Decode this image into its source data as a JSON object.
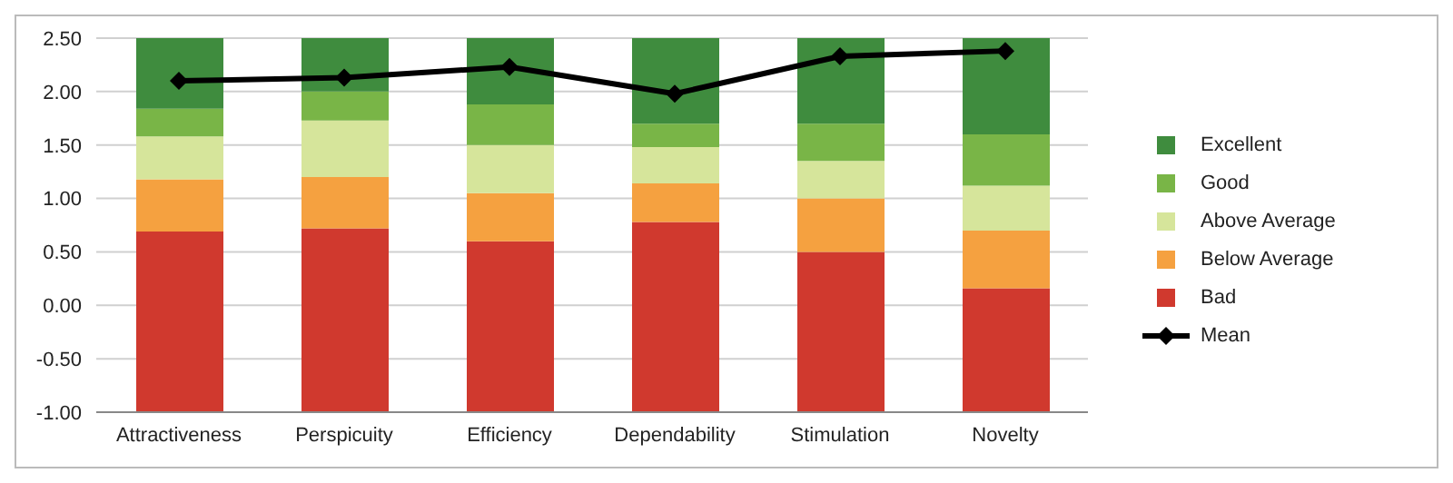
{
  "chart_data": {
    "type": "bar",
    "categories": [
      "Attractiveness",
      "Perspicuity",
      "Efficiency",
      "Dependability",
      "Stimulation",
      "Novelty"
    ],
    "series": [
      {
        "name": "Bad",
        "color": "#d0392e",
        "base": [
          -1,
          -1,
          -1,
          -1,
          -1,
          -1
        ],
        "values": [
          1.69,
          1.72,
          1.6,
          1.78,
          1.5,
          1.16
        ]
      },
      {
        "name": "Below Average",
        "color": "#f5a140",
        "base": [
          0.69,
          0.72,
          0.6,
          0.78,
          0.5,
          0.16
        ],
        "values": [
          0.49,
          0.48,
          0.45,
          0.36,
          0.5,
          0.54
        ]
      },
      {
        "name": "Above Average",
        "color": "#d6e59b",
        "base": [
          1.18,
          1.2,
          1.05,
          1.14,
          1.0,
          0.7
        ],
        "values": [
          0.4,
          0.53,
          0.45,
          0.34,
          0.35,
          0.42
        ]
      },
      {
        "name": "Good",
        "color": "#79b547",
        "base": [
          1.58,
          1.73,
          1.5,
          1.48,
          1.35,
          1.12
        ],
        "values": [
          0.26,
          0.27,
          0.38,
          0.22,
          0.35,
          0.48
        ]
      },
      {
        "name": "Excellent",
        "color": "#3f8c3e",
        "base": [
          1.84,
          2.0,
          1.88,
          1.7,
          1.7,
          1.6
        ],
        "values": [
          0.66,
          0.5,
          0.62,
          0.8,
          0.8,
          0.9
        ]
      },
      {
        "name": "Mean",
        "type": "line",
        "color": "#000000",
        "marker": "diamond",
        "values": [
          2.1,
          2.13,
          2.23,
          1.98,
          2.33,
          2.38
        ]
      }
    ],
    "ylim": [
      -1,
      2.5
    ],
    "yticks": [
      {
        "value": -1,
        "label": "-1.00"
      },
      {
        "value": -0.5,
        "label": "-0.50"
      },
      {
        "value": 0,
        "label": "0.00"
      },
      {
        "value": 0.5,
        "label": "0.50"
      },
      {
        "value": 1,
        "label": "1.00"
      },
      {
        "value": 1.5,
        "label": "1.50"
      },
      {
        "value": 2,
        "label": "2.00"
      },
      {
        "value": 2.5,
        "label": "2.50"
      }
    ],
    "grid": "y",
    "legend": "right"
  }
}
